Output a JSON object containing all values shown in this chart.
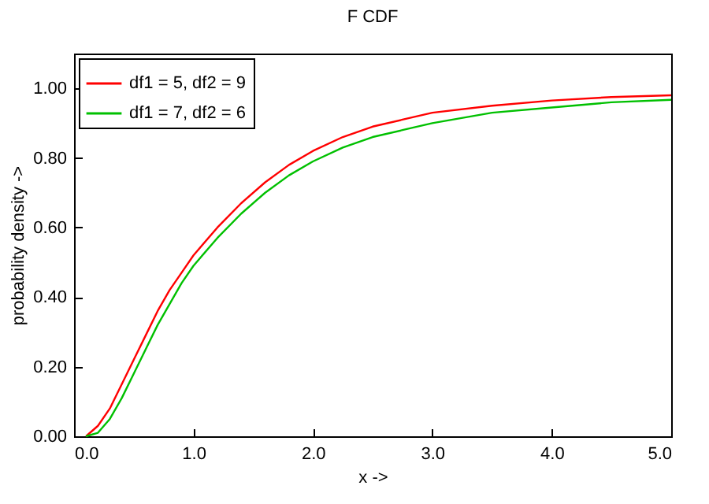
{
  "chart_data": {
    "type": "line",
    "title": "F CDF",
    "xlabel": "x ->",
    "ylabel": "probability density ->",
    "xlim": [
      0,
      5
    ],
    "ylim": [
      0,
      1.1
    ],
    "xticks": [
      {
        "value": 0,
        "label": "0.0"
      },
      {
        "value": 1,
        "label": "1.0"
      },
      {
        "value": 2,
        "label": "2.0"
      },
      {
        "value": 3,
        "label": "3.0"
      },
      {
        "value": 4,
        "label": "4.0"
      },
      {
        "value": 5,
        "label": "5.0"
      }
    ],
    "yticks": [
      {
        "value": 0,
        "label": "0.00"
      },
      {
        "value": 0.2,
        "label": "0.20"
      },
      {
        "value": 0.4,
        "label": "0.40"
      },
      {
        "value": 0.6,
        "label": "0.60"
      },
      {
        "value": 0.8,
        "label": "0.80"
      },
      {
        "value": 1,
        "label": "1.00"
      }
    ],
    "x": [
      0.1,
      0.2,
      0.3,
      0.4,
      0.5,
      0.6,
      0.7,
      0.8,
      0.9,
      1.0,
      1.2,
      1.4,
      1.6,
      1.8,
      2.0,
      2.25,
      2.5,
      2.75,
      3.0,
      3.5,
      4.0,
      4.5,
      5.0
    ],
    "series": [
      {
        "name": "df1 = 5, df2 = 9",
        "color": "#ff0000",
        "values": [
          0,
          0.03,
          0.08,
          0.15,
          0.22,
          0.29,
          0.36,
          0.42,
          0.47,
          0.52,
          0.6,
          0.67,
          0.73,
          0.78,
          0.82,
          0.86,
          0.89,
          0.91,
          0.93,
          0.95,
          0.965,
          0.975,
          0.98
        ]
      },
      {
        "name": "df1 = 7, df2 = 6",
        "color": "#00c000",
        "values": [
          0,
          0.01,
          0.05,
          0.11,
          0.18,
          0.25,
          0.32,
          0.38,
          0.44,
          0.49,
          0.57,
          0.64,
          0.7,
          0.75,
          0.79,
          0.83,
          0.86,
          0.88,
          0.9,
          0.93,
          0.945,
          0.96,
          0.967
        ]
      }
    ],
    "grid": false,
    "legend": "top left",
    "marker": "none",
    "line_style": "solid"
  }
}
